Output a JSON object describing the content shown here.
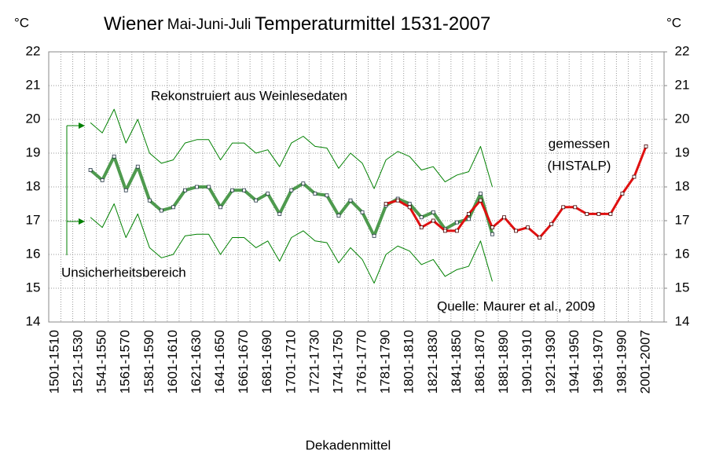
{
  "chart_data": {
    "type": "line",
    "title": [
      "Wiener",
      "Mai-Juni-Juli",
      "Temperaturmittel 1531-2007"
    ],
    "y_unit": "°C",
    "y2_unit": "°C",
    "x_label": "Dekadenmittel",
    "annotations": [
      "Rekonstruiert aus Weinlesedaten",
      "Unsicherheitsbereich",
      "gemessen",
      "(HISTALP)",
      "Quelle: Maurer et al., 2009"
    ],
    "categories": [
      "1501-1510",
      null,
      "1521-1530",
      null,
      "1541-1550",
      null,
      "1561-1570",
      null,
      "1581-1590",
      null,
      "1601-1610",
      null,
      "1621-1630",
      null,
      "1641-1650",
      null,
      "1661-1670",
      null,
      "1681-1690",
      null,
      "1701-1710",
      null,
      "1721-1730",
      null,
      "1741-1750",
      null,
      "1761-1770",
      null,
      "1781-1790",
      null,
      "1801-1810",
      null,
      "1821-1830",
      null,
      "1841-1850",
      null,
      "1861-1870",
      null,
      "1881-1890",
      null,
      "1901-1910",
      null,
      "1921-1930",
      null,
      "1941-1950",
      null,
      "1961-1970",
      null,
      "1981-1990",
      null,
      "2001-2007"
    ],
    "series": [
      {
        "color": "#008000",
        "line_width": 1,
        "markers": false,
        "values": [
          null,
          null,
          null,
          19.9,
          19.6,
          20.3,
          19.3,
          20.0,
          19.0,
          18.7,
          18.8,
          19.3,
          19.4,
          19.4,
          18.8,
          19.3,
          19.3,
          19.0,
          19.1,
          18.6,
          19.3,
          19.5,
          19.2,
          19.15,
          18.55,
          19.0,
          18.7,
          17.95,
          18.8,
          19.05,
          18.9,
          18.5,
          18.6,
          18.15,
          18.35,
          18.45,
          19.2,
          18.0,
          null,
          null,
          null,
          null,
          null,
          null,
          null,
          null,
          null,
          null,
          null,
          null,
          null
        ]
      },
      {
        "color": "#008000",
        "line_width": 1,
        "markers": false,
        "values": [
          null,
          null,
          null,
          17.1,
          16.8,
          17.5,
          16.5,
          17.2,
          16.2,
          15.9,
          16.0,
          16.55,
          16.6,
          16.6,
          16.0,
          16.5,
          16.5,
          16.2,
          16.4,
          15.8,
          16.5,
          16.7,
          16.4,
          16.35,
          15.75,
          16.2,
          15.85,
          15.15,
          16.0,
          16.25,
          16.1,
          15.7,
          15.85,
          15.35,
          15.55,
          15.65,
          16.4,
          15.2,
          null,
          null,
          null,
          null,
          null,
          null,
          null,
          null,
          null,
          null,
          null,
          null,
          null
        ]
      },
      {
        "color": "#4e9a4e",
        "line_width": 4,
        "markers": true,
        "values": [
          null,
          null,
          null,
          18.5,
          18.2,
          18.9,
          17.9,
          18.6,
          17.6,
          17.3,
          17.4,
          17.9,
          18.0,
          18.0,
          17.4,
          17.9,
          17.9,
          17.6,
          17.8,
          17.2,
          17.9,
          18.1,
          17.8,
          17.75,
          17.15,
          17.6,
          17.25,
          16.55,
          17.45,
          17.65,
          17.5,
          17.1,
          17.25,
          16.75,
          16.95,
          17.05,
          17.8,
          16.6,
          null,
          null,
          null,
          null,
          null,
          null,
          null,
          null,
          null,
          null,
          null,
          null,
          null
        ]
      },
      {
        "color": "#e01010",
        "line_width": 3,
        "markers": true,
        "values": [
          null,
          null,
          null,
          null,
          null,
          null,
          null,
          null,
          null,
          null,
          null,
          null,
          null,
          null,
          null,
          null,
          null,
          null,
          null,
          null,
          null,
          null,
          null,
          null,
          null,
          null,
          null,
          null,
          17.5,
          17.6,
          17.4,
          16.8,
          17.0,
          16.7,
          16.7,
          17.2,
          17.6,
          16.8,
          17.1,
          16.7,
          16.8,
          16.5,
          16.9,
          17.4,
          17.4,
          17.2,
          17.2,
          17.2,
          17.8,
          18.3,
          19.2
        ]
      }
    ],
    "ylim": [
      14,
      22
    ],
    "yticks": [
      14,
      15,
      16,
      17,
      18,
      19,
      20,
      21,
      22
    ],
    "y2lim": [
      14,
      22
    ],
    "y2ticks": [
      14,
      15,
      16,
      17,
      18,
      19,
      20,
      21,
      22
    ],
    "grid": true
  }
}
